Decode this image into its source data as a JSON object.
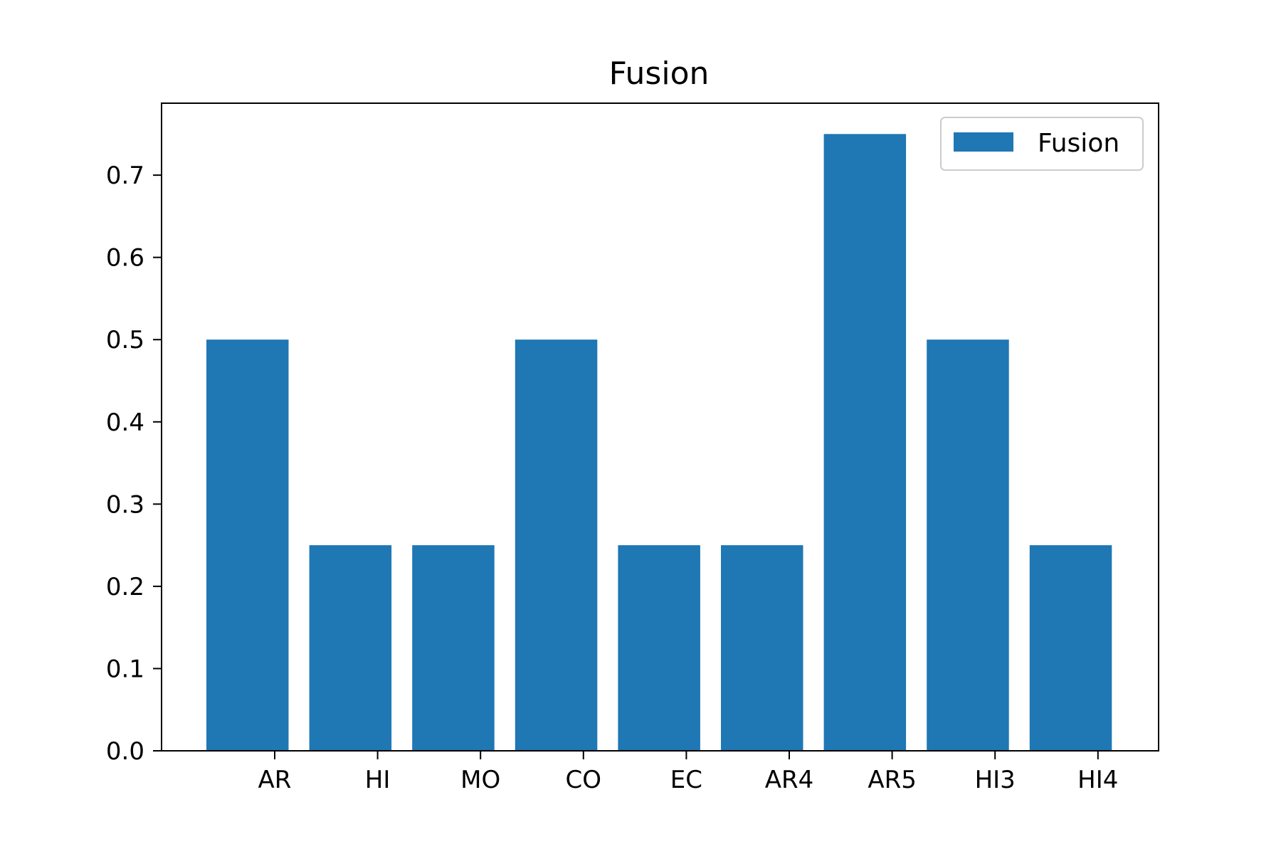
{
  "chart_data": {
    "type": "bar",
    "title": "Fusion",
    "categories": [
      "AR",
      "HI",
      "MO",
      "CO",
      "EC",
      "AR4",
      "AR5",
      "HI3",
      "HI4"
    ],
    "series": [
      {
        "name": "Fusion",
        "color": "#1f77b4",
        "values": [
          0.5,
          0.25,
          0.25,
          0.5,
          0.25,
          0.25,
          0.75,
          0.5,
          0.25
        ]
      }
    ],
    "xlabel": "",
    "ylabel": "",
    "ylim": [
      0,
      0.7875
    ],
    "yticks": [
      "0.0",
      "0.1",
      "0.2",
      "0.3",
      "0.4",
      "0.5",
      "0.6",
      "0.7"
    ],
    "grid": false,
    "legend": {
      "position": "top-right",
      "entries": [
        "Fusion"
      ]
    }
  }
}
